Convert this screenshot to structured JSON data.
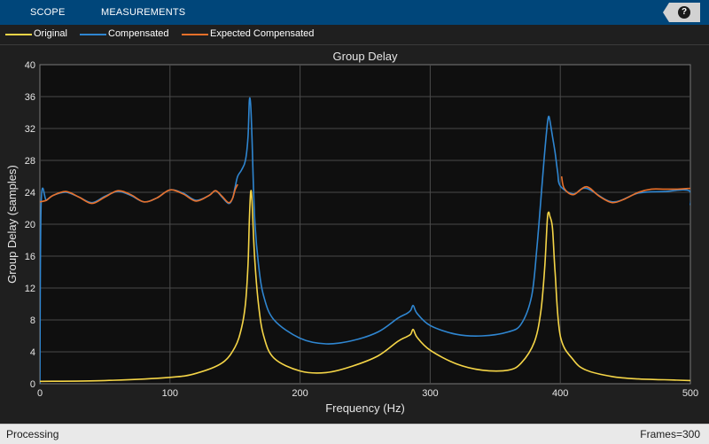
{
  "toolstrip": {
    "tabs": [
      {
        "label": "SCOPE"
      },
      {
        "label": "MEASUREMENTS"
      }
    ],
    "help_icon": "question-icon",
    "help_label": "?"
  },
  "legend": {
    "items": [
      {
        "label": "Original",
        "color": "#f5d547"
      },
      {
        "label": "Compensated",
        "color": "#2f86d1"
      },
      {
        "label": "Expected Compensated",
        "color": "#e8702a"
      }
    ]
  },
  "chart_data": {
    "type": "line",
    "title": "Group Delay",
    "xlabel": "Frequency (Hz)",
    "ylabel": "Group Delay (samples)",
    "xlim": [
      0,
      500
    ],
    "ylim": [
      0,
      40
    ],
    "xticks": [
      0,
      100,
      200,
      300,
      400,
      500
    ],
    "yticks": [
      0,
      4,
      8,
      12,
      16,
      20,
      24,
      28,
      32,
      36,
      40
    ],
    "grid": true,
    "legend_position": "top",
    "series": [
      {
        "name": "Original",
        "color": "#f5d547",
        "x": [
          0,
          50,
          100,
          120,
          140,
          150,
          155,
          158,
          160,
          161,
          162,
          163,
          165,
          168,
          172,
          180,
          200,
          220,
          240,
          260,
          275,
          282,
          285,
          287,
          290,
          300,
          320,
          340,
          360,
          370,
          380,
          385,
          388,
          390,
          391,
          392,
          394,
          396,
          400,
          410,
          420,
          440,
          460,
          480,
          500
        ],
        "y": [
          0.3,
          0.4,
          0.8,
          1.3,
          2.6,
          4.6,
          7.0,
          10.0,
          15.0,
          20.5,
          24.0,
          23.0,
          16.0,
          10.0,
          6.0,
          3.2,
          1.6,
          1.4,
          2.2,
          3.5,
          5.3,
          5.9,
          6.2,
          6.8,
          5.8,
          4.2,
          2.5,
          1.7,
          1.7,
          2.6,
          5.2,
          9.0,
          14.5,
          20.5,
          21.5,
          21.0,
          19.5,
          14.0,
          6.0,
          3.0,
          1.7,
          0.9,
          0.6,
          0.5,
          0.4
        ],
        "smooth": true
      },
      {
        "name": "Compensated",
        "color": "#2f86d1",
        "x": [
          0,
          1,
          5,
          10,
          20,
          30,
          40,
          50,
          60,
          70,
          80,
          90,
          100,
          110,
          120,
          130,
          135,
          140,
          145,
          148,
          150,
          152,
          155,
          158,
          160,
          161,
          162,
          163,
          165,
          168,
          172,
          180,
          200,
          220,
          240,
          260,
          275,
          282,
          285,
          287,
          290,
          300,
          320,
          340,
          360,
          370,
          378,
          382,
          386,
          388,
          390,
          391,
          392,
          394,
          396,
          398,
          400,
          410,
          420,
          440,
          460,
          480,
          499,
          500
        ],
        "y": [
          0,
          22.8,
          23.0,
          23.6,
          24.0,
          23.4,
          22.7,
          23.5,
          24.1,
          23.6,
          22.8,
          23.3,
          24.3,
          23.9,
          23.0,
          23.6,
          24.2,
          23.4,
          22.6,
          23.2,
          24.6,
          26.0,
          26.8,
          28.0,
          31.0,
          35.5,
          35.0,
          31.0,
          21.0,
          15.0,
          11.0,
          8.0,
          5.7,
          5.0,
          5.4,
          6.5,
          8.2,
          8.8,
          9.2,
          9.8,
          8.8,
          7.3,
          6.2,
          6.0,
          6.5,
          7.5,
          11.0,
          17.0,
          25.0,
          29.0,
          32.5,
          33.5,
          33.0,
          31.0,
          29.0,
          26.5,
          24.8,
          23.8,
          24.5,
          22.8,
          23.9,
          24.1,
          24.2,
          22.4
        ],
        "smooth": true
      },
      {
        "name": "Expected Compensated",
        "color": "#e8702a",
        "x": [
          0,
          5,
          10,
          20,
          30,
          40,
          50,
          60,
          70,
          80,
          90,
          100,
          110,
          120,
          130,
          135,
          140,
          145,
          148,
          150,
          152,
          401,
          403,
          410,
          420,
          430,
          440,
          450,
          460,
          470,
          480,
          490,
          500
        ],
        "y": [
          22.8,
          23.0,
          23.6,
          24.1,
          23.4,
          22.6,
          23.4,
          24.2,
          23.7,
          22.8,
          23.3,
          24.3,
          23.8,
          22.9,
          23.6,
          24.2,
          23.5,
          22.7,
          23.2,
          24.3,
          25.0,
          26.0,
          24.5,
          23.7,
          24.7,
          23.5,
          22.7,
          23.2,
          24.0,
          24.4,
          24.4,
          24.4,
          24.5
        ],
        "segments": [
          [
            0,
            20
          ],
          [
            21,
            32
          ]
        ],
        "smooth": true
      }
    ]
  },
  "status": {
    "left": "Processing",
    "right": "Frames=300"
  }
}
